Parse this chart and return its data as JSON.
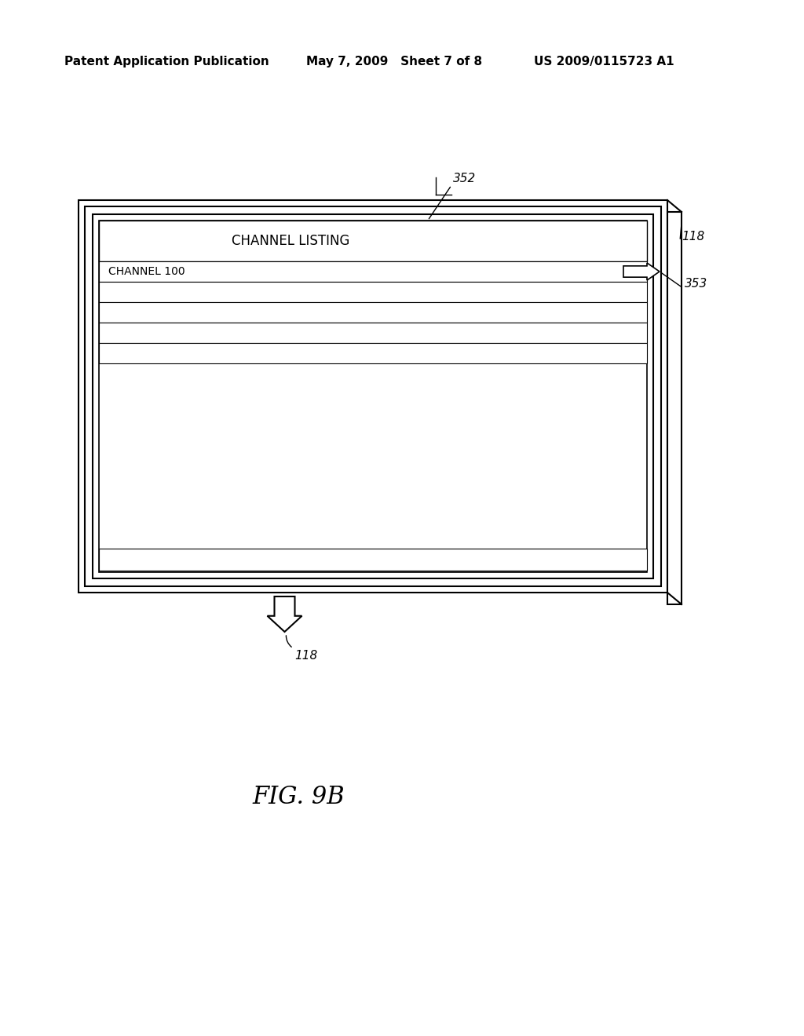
{
  "bg_color": "#ffffff",
  "header_text1": "Patent Application Publication",
  "header_text2": "May 7, 2009   Sheet 7 of 8",
  "header_text3": "US 2009/0115723 A1",
  "fig_label": "FIG. 9B",
  "channel_listing_text": "CHANNEL LISTING",
  "channel_row_text": "CHANNEL 100",
  "label_352": "352",
  "label_118_top": "118",
  "label_353": "353",
  "label_118_bottom": "118"
}
